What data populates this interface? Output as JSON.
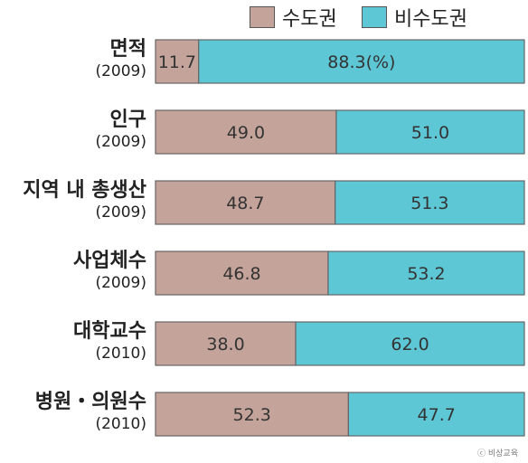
{
  "chart_data": {
    "type": "bar",
    "orientation": "horizontal",
    "stacked": true,
    "percent": true,
    "categories": [
      "면적",
      "인구",
      "지역 내 총생산",
      "사업체수",
      "대학교수",
      "병원・의원수"
    ],
    "years": [
      "(2009)",
      "(2009)",
      "(2009)",
      "(2009)",
      "(2010)",
      "(2010)"
    ],
    "series": [
      {
        "name": "수도권",
        "color": "#c4a49a",
        "values": [
          11.7,
          49.0,
          48.7,
          46.8,
          38.0,
          52.3
        ],
        "labels": [
          "11.7",
          "49.0",
          "48.7",
          "46.8",
          "38.0",
          "52.3"
        ]
      },
      {
        "name": "비수도권",
        "color": "#5ec7d6",
        "values": [
          88.3,
          51.0,
          51.3,
          53.2,
          62.0,
          47.7
        ],
        "labels": [
          "88.3(%)",
          "51.0",
          "51.3",
          "53.2",
          "62.0",
          "47.7"
        ]
      }
    ],
    "xlim": [
      0,
      100
    ],
    "legend": "top-right"
  },
  "watermark": "ⓒ 비상교육"
}
